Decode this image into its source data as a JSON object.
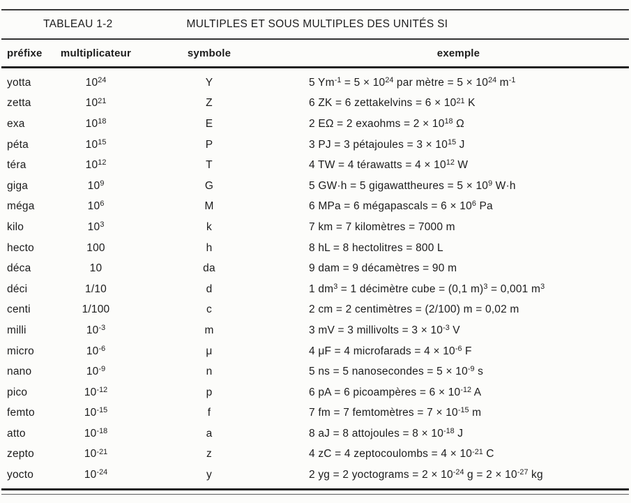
{
  "table": {
    "label": "TABLEAU 1-2",
    "title": "MULTIPLES ET SOUS MULTIPLES DES UNITÉS SI",
    "columns": [
      "préfixe",
      "multiplicateur",
      "symbole",
      "exemple"
    ],
    "rows": [
      {
        "prefix": "yotta",
        "multiplier": "10^24^",
        "symbol": "Y",
        "example": "5 Ym^-1^ = 5 × 10^24^ par mètre = 5 × 10^24^ m^-1^"
      },
      {
        "prefix": "zetta",
        "multiplier": "10^21^",
        "symbol": "Z",
        "example": "6 ZK = 6 zettakelvins = 6 × 10^21^ K"
      },
      {
        "prefix": "exa",
        "multiplier": "10^18^",
        "symbol": "E",
        "example": "2 EΩ = 2 exaohms = 2 × 10^18^ Ω"
      },
      {
        "prefix": "péta",
        "multiplier": "10^15^",
        "symbol": "P",
        "example": "3 PJ = 3 pétajoules = 3 × 10^15^ J"
      },
      {
        "prefix": "téra",
        "multiplier": "10^12^",
        "symbol": "T",
        "example": "4 TW = 4 térawatts = 4 × 10^12^ W"
      },
      {
        "prefix": "giga",
        "multiplier": "10^9^",
        "symbol": "G",
        "example": "5 GW·h = 5 gigawattheures = 5 × 10^9^ W·h"
      },
      {
        "prefix": "méga",
        "multiplier": "10^6^",
        "symbol": "M",
        "example": "6 MPa = 6 mégapascals = 6 × 10^6^ Pa"
      },
      {
        "prefix": "kilo",
        "multiplier": "10^3^",
        "symbol": "k",
        "example": "7 km = 7 kilomètres = 7000 m"
      },
      {
        "prefix": "hecto",
        "multiplier": "100",
        "symbol": "h",
        "example": "8 hL = 8 hectolitres = 800 L"
      },
      {
        "prefix": "déca",
        "multiplier": "10",
        "symbol": "da",
        "example": "9 dam = 9 décamètres = 90 m"
      },
      {
        "prefix": "déci",
        "multiplier": "1/10",
        "symbol": "d",
        "example": "1 dm^3^ = 1 décimètre cube = (0,1 m)^3^ = 0,001 m^3^"
      },
      {
        "prefix": "centi",
        "multiplier": "1/100",
        "symbol": "c",
        "example": "2 cm = 2 centimètres = (2/100) m = 0,02 m"
      },
      {
        "prefix": "milli",
        "multiplier": "10^-3^",
        "symbol": "m",
        "example": "3 mV = 3 millivolts = 3 × 10^-3^ V"
      },
      {
        "prefix": "micro",
        "multiplier": "10^-6^",
        "symbol": "μ",
        "example": "4 μF = 4 microfarads = 4 × 10^-6^ F"
      },
      {
        "prefix": "nano",
        "multiplier": "10^-9^",
        "symbol": "n",
        "example": "5 ns = 5 nanosecondes = 5 × 10^-9^ s"
      },
      {
        "prefix": "pico",
        "multiplier": "10^-12^",
        "symbol": "p",
        "example": "6 pA = 6 picoampères = 6 × 10^-12^ A"
      },
      {
        "prefix": "femto",
        "multiplier": "10^-15^",
        "symbol": "f",
        "example": "7 fm = 7 femtomètres = 7 × 10^-15^ m"
      },
      {
        "prefix": "atto",
        "multiplier": "10^-18^",
        "symbol": "a",
        "example": "8 aJ = 8 attojoules = 8 × 10^-18^ J"
      },
      {
        "prefix": "zepto",
        "multiplier": "10^-21^",
        "symbol": "z",
        "example": "4 zC = 4 zeptocoulombs = 4 × 10^-21^ C"
      },
      {
        "prefix": "yocto",
        "multiplier": "10^-24^",
        "symbol": "y",
        "example": "2 yg = 2 yoctograms = 2 × 10^-24^ g = 2 × 10^-27^ kg"
      }
    ]
  }
}
